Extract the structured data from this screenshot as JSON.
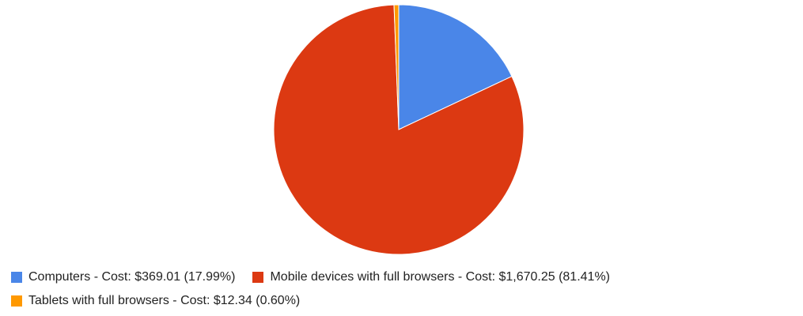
{
  "chart_data": {
    "type": "pie",
    "title": "",
    "legend_position": "bottom",
    "start_angle_deg": 0,
    "direction": "clockwise",
    "slices": [
      {
        "label": "Computers - Cost: $369.01 (17.99%)",
        "category": "Computers",
        "cost": 369.01,
        "percent": 17.99,
        "color": "#4a86e8"
      },
      {
        "label": "Mobile devices with full browsers - Cost: $1,670.25 (81.41%)",
        "category": "Mobile devices with full browsers",
        "cost": 1670.25,
        "percent": 81.41,
        "color": "#dc3912"
      },
      {
        "label": "Tablets with full browsers - Cost: $12.34 (0.60%)",
        "category": "Tablets with full browsers",
        "cost": 12.34,
        "percent": 0.6,
        "color": "#ff9900"
      }
    ]
  }
}
